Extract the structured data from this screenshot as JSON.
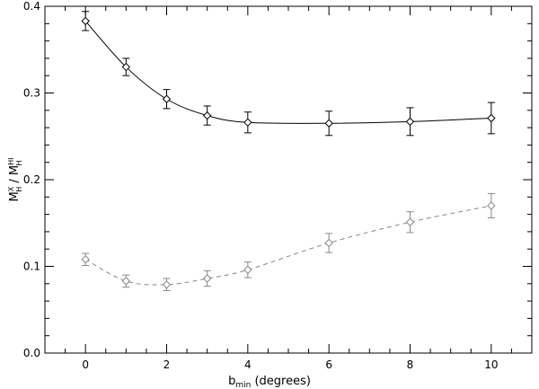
{
  "chart_data": {
    "type": "line",
    "xlabel": {
      "main": "b",
      "sub": "min",
      "rest": " (degrees)"
    },
    "ylabel": {
      "num_main": "M",
      "num_sup": "X",
      "num_sub": "H",
      "den_main": "M",
      "den_sup": "HI",
      "den_sub": "H"
    },
    "xlim": [
      -1,
      11
    ],
    "ylim": [
      0.0,
      0.4
    ],
    "x_ticks": [
      0,
      2,
      4,
      6,
      8,
      10
    ],
    "x_tick_labels": [
      "0",
      "2",
      "4",
      "6",
      "8",
      "10"
    ],
    "y_ticks": [
      0.0,
      0.1,
      0.2,
      0.3,
      0.4
    ],
    "y_tick_labels": [
      "0.0",
      "0.1",
      "0.2",
      "0.3",
      "0.4"
    ],
    "grid": false,
    "series": [
      {
        "style": "solid",
        "color": "#000000",
        "marker": "diamond",
        "points": [
          {
            "x": 0,
            "y": 0.383,
            "err": 0.011
          },
          {
            "x": 1,
            "y": 0.33,
            "err": 0.01
          },
          {
            "x": 2,
            "y": 0.293,
            "err": 0.011
          },
          {
            "x": 3,
            "y": 0.274,
            "err": 0.011
          },
          {
            "x": 4,
            "y": 0.266,
            "err": 0.012
          },
          {
            "x": 6,
            "y": 0.265,
            "err": 0.014
          },
          {
            "x": 8,
            "y": 0.267,
            "err": 0.016
          },
          {
            "x": 10,
            "y": 0.271,
            "err": 0.018
          }
        ]
      },
      {
        "style": "dashed",
        "color": "#888888",
        "marker": "diamond",
        "points": [
          {
            "x": 0,
            "y": 0.108,
            "err": 0.007
          },
          {
            "x": 1,
            "y": 0.083,
            "err": 0.007
          },
          {
            "x": 2,
            "y": 0.079,
            "err": 0.007
          },
          {
            "x": 3,
            "y": 0.086,
            "err": 0.009
          },
          {
            "x": 4,
            "y": 0.096,
            "err": 0.009
          },
          {
            "x": 6,
            "y": 0.127,
            "err": 0.011
          },
          {
            "x": 8,
            "y": 0.151,
            "err": 0.012
          },
          {
            "x": 10,
            "y": 0.17,
            "err": 0.014
          }
        ]
      }
    ]
  }
}
